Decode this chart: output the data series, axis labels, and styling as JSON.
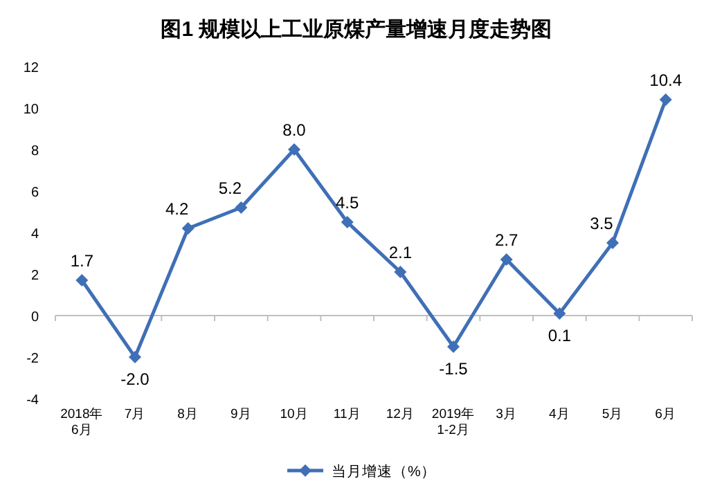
{
  "chart_data": {
    "type": "line",
    "title": "图1  规模以上工业原煤产量增速月度走势图",
    "categories": [
      "2018年\n6月",
      "7月",
      "8月",
      "9月",
      "10月",
      "11月",
      "12月",
      "2019年\n1-2月",
      "3月",
      "4月",
      "5月",
      "6月"
    ],
    "series": [
      {
        "name": "当月增速（%）",
        "color": "#3f6fb6",
        "values": [
          1.7,
          -2.0,
          4.2,
          5.2,
          8.0,
          4.5,
          2.1,
          -1.5,
          2.7,
          0.1,
          3.5,
          10.4
        ],
        "value_labels": [
          "1.7",
          "-2.0",
          "4.2",
          "5.2",
          "8.0",
          "4.5",
          "2.1",
          "-1.5",
          "2.7",
          "0.1",
          "3.5",
          "10.4"
        ]
      }
    ],
    "ylim": [
      -4,
      12
    ],
    "yticks": [
      -4,
      -2,
      0,
      2,
      4,
      6,
      8,
      10,
      12
    ],
    "marker": "diamond",
    "line_style": "solid",
    "legend": "bottom"
  }
}
